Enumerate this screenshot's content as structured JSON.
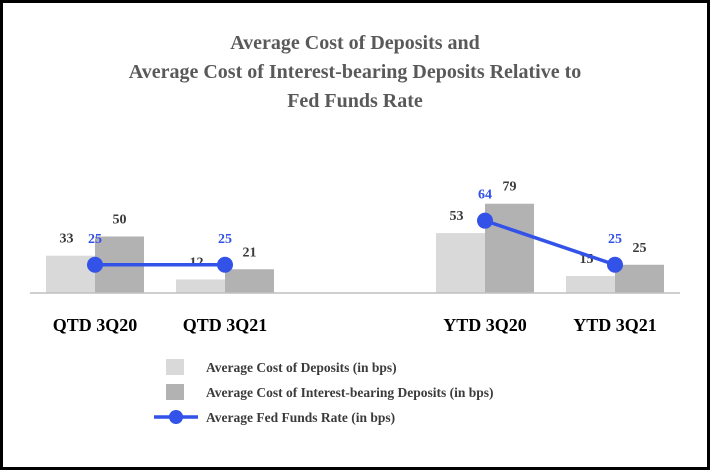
{
  "chart_data": {
    "type": "bar",
    "title": [
      "Average Cost of Deposits and",
      "Average Cost of Interest-bearing Deposits Relative to",
      "Fed Funds Rate"
    ],
    "categories": [
      "QTD 3Q20",
      "QTD 3Q21",
      "YTD 3Q20",
      "YTD 3Q21"
    ],
    "series": [
      {
        "name": "Average Cost of Deposits (in bps)",
        "kind": "bar",
        "color": "#d9d9d9",
        "values": [
          33,
          12,
          53,
          15
        ]
      },
      {
        "name": "Average Cost of Interest-bearing Deposits (in bps)",
        "kind": "bar",
        "color": "#b2b2b2",
        "values": [
          50,
          21,
          79,
          25
        ]
      },
      {
        "name": "Average Fed Funds Rate (in bps)",
        "kind": "line",
        "color": "#3352e8",
        "values": [
          25,
          25,
          64,
          25
        ],
        "segments": [
          [
            0,
            1
          ],
          [
            2,
            3
          ]
        ]
      }
    ],
    "xlabel": "",
    "ylabel": "",
    "ylim": [
      0,
      100
    ],
    "grid": false,
    "legend_position": "bottom"
  }
}
